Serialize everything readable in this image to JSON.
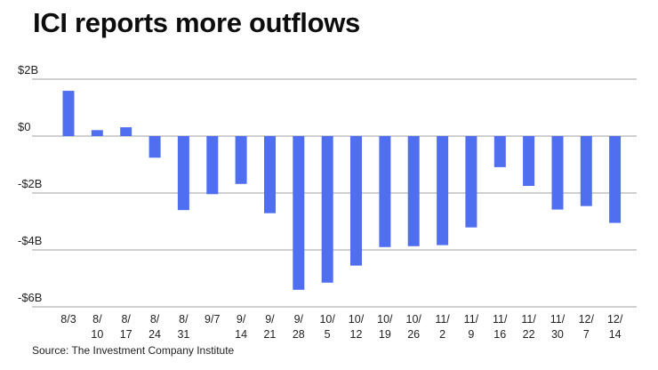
{
  "title": "ICI reports more outflows",
  "source": "Source: The Investment Company Institute",
  "colors": {
    "bar": "#4f6ff0",
    "grid": "#a0a0a0"
  },
  "chart_data": {
    "type": "bar",
    "title": "ICI reports more outflows",
    "xlabel": "",
    "ylabel": "",
    "ylim": [
      -6,
      2
    ],
    "unit": "billions of dollars",
    "grid": true,
    "legend": "none",
    "yticks": [
      2,
      0,
      -2,
      -4,
      -6
    ],
    "ytick_labels": [
      "$2B",
      "$0",
      "-$2B",
      "-$4B",
      "-$6B"
    ],
    "categories": [
      "8/3",
      "8/10",
      "8/17",
      "8/24",
      "8/31",
      "9/7",
      "9/14",
      "9/21",
      "9/28",
      "10/5",
      "10/12",
      "10/19",
      "10/26",
      "11/2",
      "11/9",
      "11/16",
      "11/22",
      "11/30",
      "12/7",
      "12/14"
    ],
    "category_label_lines": [
      [
        "8/3"
      ],
      [
        "8/",
        "10"
      ],
      [
        "8/",
        "17"
      ],
      [
        "8/",
        "24"
      ],
      [
        "8/",
        "31"
      ],
      [
        "9/7"
      ],
      [
        "9/",
        "14"
      ],
      [
        "9/",
        "21"
      ],
      [
        "9/",
        "28"
      ],
      [
        "10/",
        "5"
      ],
      [
        "10/",
        "12"
      ],
      [
        "10/",
        "19"
      ],
      [
        "10/",
        "26"
      ],
      [
        "11/",
        "2"
      ],
      [
        "11/",
        "9"
      ],
      [
        "11/",
        "16"
      ],
      [
        "11/",
        "22"
      ],
      [
        "11/",
        "30"
      ],
      [
        "12/",
        "7"
      ],
      [
        "12/",
        "14"
      ]
    ],
    "values": [
      1.59,
      0.21,
      0.31,
      -0.76,
      -2.6,
      -2.04,
      -1.68,
      -2.71,
      -5.4,
      -5.15,
      -4.55,
      -3.9,
      -3.87,
      -3.83,
      -3.21,
      -1.09,
      -1.75,
      -2.58,
      -2.46,
      -3.05
    ]
  }
}
